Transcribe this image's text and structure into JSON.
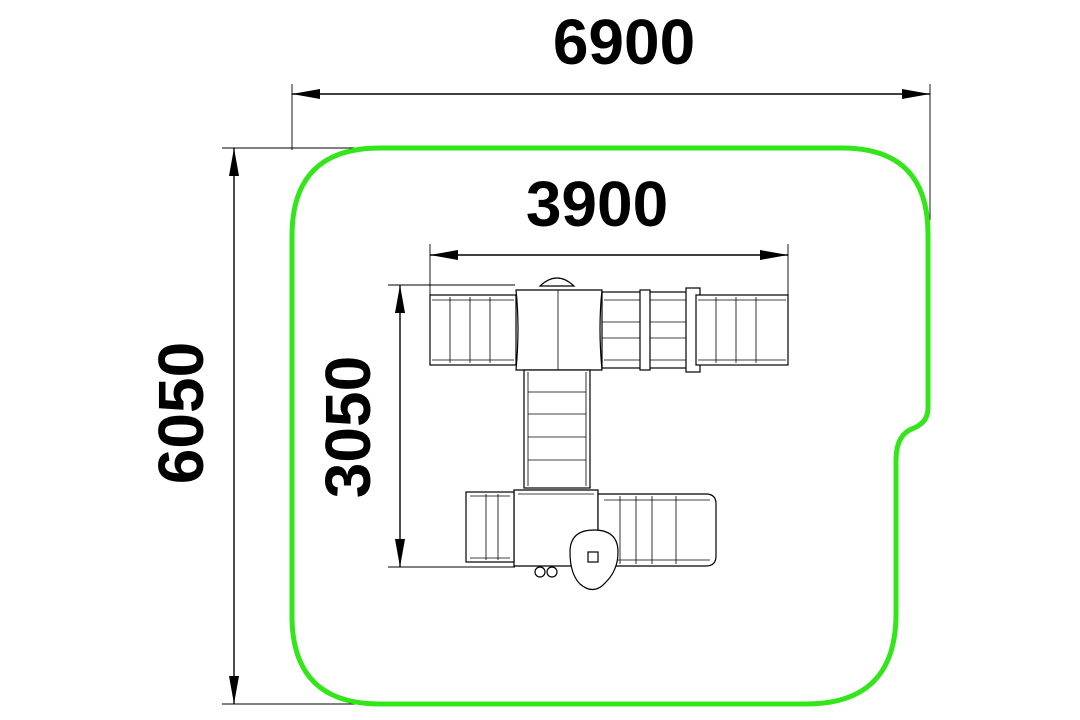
{
  "dimensions": {
    "overall_width": "6900",
    "overall_depth": "6050",
    "equipment_width": "3900",
    "equipment_depth": "3050"
  },
  "colors": {
    "safety_zone": "#33e61a",
    "linework": "#000000",
    "background": "#ffffff"
  }
}
